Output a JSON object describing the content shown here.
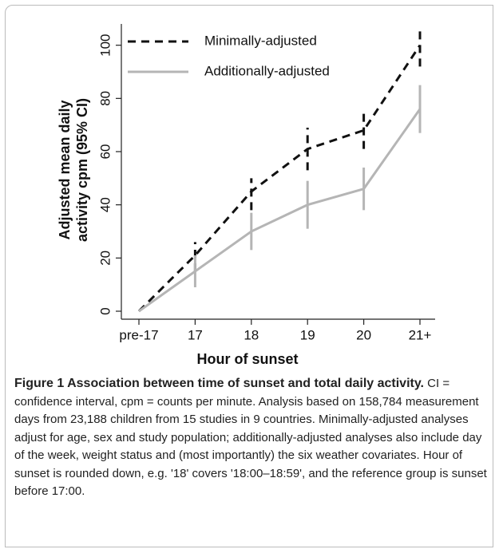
{
  "chart_data": {
    "type": "line",
    "ylabel": [
      "Adjusted mean daily",
      "activity cpm (95% CI)"
    ],
    "xlabel": "Hour of sunset",
    "categories": [
      "pre-17",
      "17",
      "18",
      "19",
      "20",
      "21+"
    ],
    "series": [
      {
        "name": "Minimally-adjusted",
        "color": "#111111",
        "dash": true,
        "values": [
          0,
          21,
          45,
          61,
          68,
          100
        ],
        "lower": [
          null,
          15,
          38,
          53,
          61,
          92
        ],
        "upper": [
          null,
          26,
          50,
          69,
          75,
          107
        ]
      },
      {
        "name": "Additionally-adjusted",
        "color": "#b5b5b5",
        "dash": false,
        "values": [
          0,
          15,
          30,
          40,
          46,
          76
        ],
        "lower": [
          null,
          9,
          23,
          31,
          38,
          67
        ],
        "upper": [
          null,
          21,
          37,
          49,
          54,
          85
        ]
      }
    ],
    "ylim": [
      -3,
      108
    ],
    "yticks": [
      0,
      20,
      40,
      60,
      80,
      100
    ],
    "legend": "upper left"
  },
  "caption": {
    "title": "Figure 1 Association between time of sunset and total daily activity.",
    "text": "CI = confidence interval, cpm = counts per minute. Analysis based on 158,784 measurement days from 23,188 children from 15 studies in 9 countries. Minimally-adjusted analyses adjust for age, sex and study population; additionally-adjusted analyses also include day of the week, weight status and (most importantly) the six weather covariates. Hour of sunset is rounded down, e.g. '18' covers '18:00–18:59', and the reference group is sunset before 17:00."
  }
}
